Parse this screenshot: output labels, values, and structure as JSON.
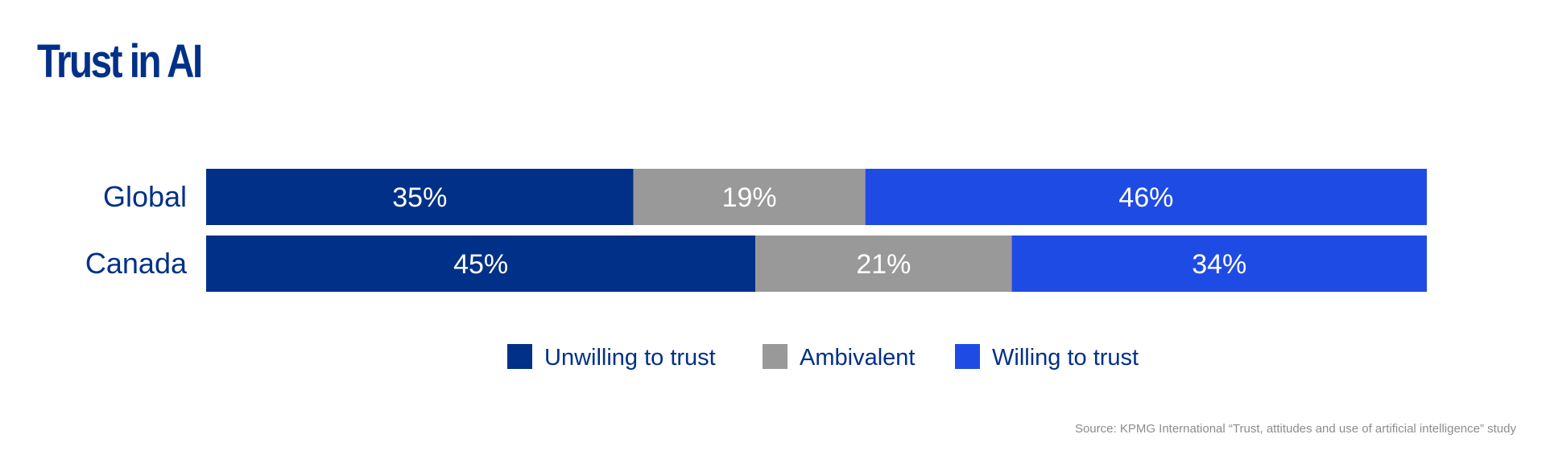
{
  "title": "Trust in AI",
  "source": "Source: KPMG International “Trust, attitudes and use of artificial intelligence” study",
  "chart_data": {
    "type": "bar",
    "orientation": "horizontal",
    "stacked": true,
    "title": "Trust in AI",
    "categories": [
      "Global",
      "Canada"
    ],
    "series": [
      {
        "name": "Unwilling to trust",
        "color": "#003087",
        "values": [
          35,
          45
        ],
        "labels": [
          "35%",
          "45%"
        ]
      },
      {
        "name": "Ambivalent",
        "color": "#999999",
        "values": [
          19,
          21
        ],
        "labels": [
          "19%",
          "21%"
        ]
      },
      {
        "name": "Willing to trust",
        "color": "#1f4be5",
        "values": [
          46,
          34
        ],
        "labels": [
          "46%",
          "34%"
        ]
      }
    ],
    "xlim": [
      0,
      100
    ],
    "grid": false,
    "legend_position": "bottom"
  }
}
